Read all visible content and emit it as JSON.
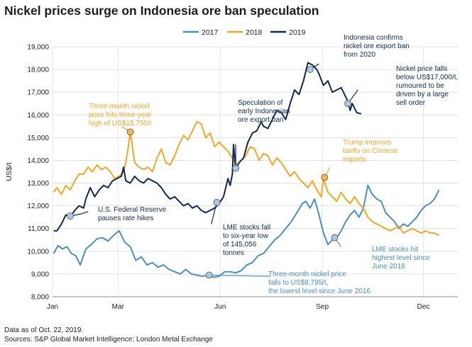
{
  "title": "Nickel prices surge on Indonesia ore ban speculation",
  "footer": {
    "note": "Data as of Oct. 22, 2019.",
    "sources": "Sources: S&P Global Market Intelligence; London Metal Exchange"
  },
  "chart_data": {
    "type": "line",
    "ylabel": "US$/t",
    "xlabel": "",
    "ylim": [
      8000,
      19000
    ],
    "yticks": [
      8000,
      9000,
      10000,
      11000,
      12000,
      13000,
      14000,
      15000,
      16000,
      17000,
      18000,
      19000
    ],
    "ytick_labels": [
      "8,000",
      "9,000",
      "10,000",
      "11,000",
      "12,000",
      "13,000",
      "14,000",
      "15,000",
      "16,000",
      "17,000",
      "18,000",
      "19,000"
    ],
    "xlim": [
      0,
      365
    ],
    "xticks": [
      {
        "day": 0,
        "label": "Jan"
      },
      {
        "day": 59,
        "label": "Mar"
      },
      {
        "day": 151,
        "label": "Jun"
      },
      {
        "day": 243,
        "label": "Sep"
      },
      {
        "day": 334,
        "label": "Dec"
      }
    ],
    "grid": "horizontal",
    "legend_position": "top",
    "series": [
      {
        "name": "2017",
        "color": "#4a8fbf",
        "points": [
          [
            1,
            9900
          ],
          [
            5,
            10250
          ],
          [
            9,
            10100
          ],
          [
            13,
            10200
          ],
          [
            17,
            9900
          ],
          [
            21,
            9800
          ],
          [
            25,
            9400
          ],
          [
            30,
            10100
          ],
          [
            35,
            10300
          ],
          [
            40,
            10550
          ],
          [
            45,
            10600
          ],
          [
            50,
            10450
          ],
          [
            55,
            10700
          ],
          [
            60,
            10900
          ],
          [
            65,
            10400
          ],
          [
            70,
            10200
          ],
          [
            75,
            9600
          ],
          [
            80,
            9750
          ],
          [
            85,
            9400
          ],
          [
            90,
            9500
          ],
          [
            95,
            9300
          ],
          [
            100,
            9400
          ],
          [
            105,
            9200
          ],
          [
            110,
            9100
          ],
          [
            115,
            9000
          ],
          [
            120,
            9200
          ],
          [
            125,
            9000
          ],
          [
            130,
            8950
          ],
          [
            135,
            8900
          ],
          [
            140,
            8950
          ],
          [
            145,
            8850
          ],
          [
            150,
            8900
          ],
          [
            155,
            9100
          ],
          [
            160,
            9100
          ],
          [
            165,
            9050
          ],
          [
            170,
            9150
          ],
          [
            175,
            9400
          ],
          [
            180,
            9500
          ],
          [
            185,
            9800
          ],
          [
            190,
            9900
          ],
          [
            195,
            10200
          ],
          [
            200,
            10500
          ],
          [
            205,
            10700
          ],
          [
            210,
            11000
          ],
          [
            215,
            11300
          ],
          [
            220,
            11700
          ],
          [
            225,
            12100
          ],
          [
            228,
            12200
          ],
          [
            232,
            11900
          ],
          [
            236,
            12300
          ],
          [
            240,
            11600
          ],
          [
            244,
            10800
          ],
          [
            248,
            10300
          ],
          [
            252,
            10500
          ],
          [
            256,
            10600
          ],
          [
            260,
            10900
          ],
          [
            264,
            11300
          ],
          [
            268,
            11600
          ],
          [
            272,
            11800
          ],
          [
            276,
            11500
          ],
          [
            280,
            11900
          ],
          [
            284,
            12900
          ],
          [
            288,
            12500
          ],
          [
            292,
            12300
          ],
          [
            296,
            12200
          ],
          [
            300,
            11700
          ],
          [
            304,
            11500
          ],
          [
            308,
            11300
          ],
          [
            312,
            11000
          ],
          [
            316,
            11200
          ],
          [
            320,
            11100
          ],
          [
            324,
            11300
          ],
          [
            328,
            11500
          ],
          [
            332,
            11800
          ],
          [
            336,
            12000
          ],
          [
            340,
            12100
          ],
          [
            344,
            12300
          ],
          [
            348,
            12700
          ]
        ]
      },
      {
        "name": "2018",
        "color": "#f5a623",
        "points": [
          [
            1,
            12600
          ],
          [
            4,
            12800
          ],
          [
            8,
            12500
          ],
          [
            12,
            12900
          ],
          [
            16,
            12700
          ],
          [
            20,
            13100
          ],
          [
            24,
            13400
          ],
          [
            28,
            13400
          ],
          [
            32,
            13700
          ],
          [
            36,
            13500
          ],
          [
            40,
            13800
          ],
          [
            44,
            13600
          ],
          [
            48,
            13700
          ],
          [
            52,
            13500
          ],
          [
            56,
            13200
          ],
          [
            60,
            13300
          ],
          [
            64,
            13500
          ],
          [
            66,
            13900
          ],
          [
            68,
            14500
          ],
          [
            70,
            15300
          ],
          [
            72,
            14600
          ],
          [
            74,
            13900
          ],
          [
            78,
            13700
          ],
          [
            82,
            13600
          ],
          [
            86,
            13700
          ],
          [
            90,
            13500
          ],
          [
            94,
            14100
          ],
          [
            98,
            14500
          ],
          [
            102,
            13900
          ],
          [
            106,
            13800
          ],
          [
            110,
            14200
          ],
          [
            114,
            14700
          ],
          [
            118,
            15100
          ],
          [
            122,
            14900
          ],
          [
            126,
            15300
          ],
          [
            130,
            15700
          ],
          [
            134,
            15600
          ],
          [
            138,
            15000
          ],
          [
            142,
            15200
          ],
          [
            146,
            14600
          ],
          [
            150,
            14800
          ],
          [
            154,
            14600
          ],
          [
            158,
            14400
          ],
          [
            162,
            14100
          ],
          [
            166,
            13800
          ],
          [
            170,
            14000
          ],
          [
            174,
            14200
          ],
          [
            178,
            14600
          ],
          [
            182,
            14500
          ],
          [
            186,
            14000
          ],
          [
            190,
            14300
          ],
          [
            194,
            14200
          ],
          [
            198,
            13800
          ],
          [
            202,
            14100
          ],
          [
            206,
            13900
          ],
          [
            210,
            13600
          ],
          [
            214,
            13300
          ],
          [
            218,
            13500
          ],
          [
            222,
            13200
          ],
          [
            226,
            13000
          ],
          [
            230,
            12800
          ],
          [
            234,
            13100
          ],
          [
            238,
            12700
          ],
          [
            242,
            12400
          ],
          [
            244,
            13200
          ],
          [
            248,
            12600
          ],
          [
            252,
            12400
          ],
          [
            256,
            12200
          ],
          [
            260,
            12600
          ],
          [
            264,
            12300
          ],
          [
            268,
            12100
          ],
          [
            272,
            12400
          ],
          [
            276,
            12100
          ],
          [
            280,
            11900
          ],
          [
            284,
            11500
          ],
          [
            288,
            11300
          ],
          [
            292,
            11200
          ],
          [
            296,
            11100
          ],
          [
            300,
            11000
          ],
          [
            304,
            10900
          ],
          [
            308,
            11000
          ],
          [
            312,
            11100
          ],
          [
            316,
            10800
          ],
          [
            320,
            10900
          ],
          [
            324,
            11000
          ],
          [
            328,
            10900
          ],
          [
            332,
            10800
          ],
          [
            336,
            10900
          ],
          [
            340,
            10800
          ],
          [
            344,
            10800
          ],
          [
            348,
            10700
          ]
        ]
      },
      {
        "name": "2019",
        "color": "#0f2a57",
        "points": [
          [
            1,
            10900
          ],
          [
            4,
            10900
          ],
          [
            8,
            11200
          ],
          [
            12,
            11600
          ],
          [
            16,
            11500
          ],
          [
            20,
            11800
          ],
          [
            24,
            12000
          ],
          [
            28,
            11900
          ],
          [
            30,
            12300
          ],
          [
            34,
            12800
          ],
          [
            38,
            12400
          ],
          [
            42,
            12700
          ],
          [
            46,
            12900
          ],
          [
            50,
            12800
          ],
          [
            54,
            13100
          ],
          [
            58,
            13200
          ],
          [
            62,
            13300
          ],
          [
            64,
            13700
          ],
          [
            66,
            13100
          ],
          [
            70,
            13000
          ],
          [
            74,
            13300
          ],
          [
            78,
            13100
          ],
          [
            82,
            13000
          ],
          [
            86,
            13200
          ],
          [
            90,
            13100
          ],
          [
            94,
            13000
          ],
          [
            98,
            12800
          ],
          [
            102,
            12500
          ],
          [
            106,
            12300
          ],
          [
            110,
            12400
          ],
          [
            114,
            12200
          ],
          [
            118,
            12000
          ],
          [
            122,
            12100
          ],
          [
            126,
            11900
          ],
          [
            130,
            12000
          ],
          [
            134,
            11800
          ],
          [
            138,
            11700
          ],
          [
            142,
            11800
          ],
          [
            146,
            11900
          ],
          [
            150,
            12100
          ],
          [
            154,
            12400
          ],
          [
            158,
            13200
          ],
          [
            160,
            12900
          ],
          [
            162,
            13400
          ],
          [
            163,
            14700
          ],
          [
            165,
            13600
          ],
          [
            168,
            13900
          ],
          [
            172,
            14100
          ],
          [
            176,
            14800
          ],
          [
            180,
            15200
          ],
          [
            184,
            15300
          ],
          [
            188,
            15700
          ],
          [
            190,
            15500
          ],
          [
            194,
            15400
          ],
          [
            198,
            15800
          ],
          [
            202,
            16200
          ],
          [
            206,
            16100
          ],
          [
            210,
            15800
          ],
          [
            214,
            16500
          ],
          [
            218,
            17100
          ],
          [
            222,
            16900
          ],
          [
            226,
            17500
          ],
          [
            230,
            18300
          ],
          [
            234,
            18200
          ],
          [
            238,
            18000
          ],
          [
            240,
            17800
          ],
          [
            244,
            17300
          ],
          [
            248,
            17500
          ],
          [
            252,
            17000
          ],
          [
            256,
            17100
          ],
          [
            260,
            17200
          ],
          [
            264,
            16800
          ],
          [
            266,
            16600
          ],
          [
            268,
            16200
          ],
          [
            270,
            16500
          ],
          [
            274,
            16100
          ],
          [
            278,
            16050
          ]
        ]
      }
    ],
    "annotations": [
      {
        "series": "2019",
        "x": 16,
        "y": 11550,
        "label": [
          "U.S. Federal Reserve",
          "pauses rate hikes"
        ],
        "color": "#0f2a57"
      },
      {
        "series": "2018",
        "x": 70,
        "y": 15250,
        "label": [
          "Three-month nickel",
          "price hits three-year",
          "high of US$15,750/t"
        ],
        "color": "#f5a623"
      },
      {
        "series": "2017",
        "x": 141,
        "y": 8950,
        "label": [
          "Three-month nickel price",
          "falls to US$8,795/t,",
          "the lowest level since June 2016"
        ],
        "color": "#4a8fbf"
      },
      {
        "series": "2019",
        "x": 148,
        "y": 12150,
        "label": [
          "LME stocks fall",
          "to six-year low",
          "of 145,056",
          "tonnes"
        ],
        "color": "#0f2a57"
      },
      {
        "series": "2019",
        "x": 165,
        "y": 13650,
        "label": [
          "Speculation of",
          "early Indonesian",
          "ore export ban"
        ],
        "color": "#0f2a57"
      },
      {
        "series": "2019",
        "x": 232,
        "y": 18000,
        "label": [
          "Indonesia confirms",
          "nickel ore export ban",
          "from 2020"
        ],
        "color": "#0f2a57"
      },
      {
        "series": "2019",
        "x": 266,
        "y": 16500,
        "label": [
          "Nickel price falls",
          "below US$17,000/t,",
          "rumoured to be",
          "driven by a large",
          "sell order"
        ],
        "color": "#0f2a57"
      },
      {
        "series": "2018",
        "x": 245,
        "y": 13250,
        "label": [
          "Trump imposes",
          "tariffs on Chinese",
          "imports"
        ],
        "color": "#f5a623"
      },
      {
        "series": "2017",
        "x": 254,
        "y": 10600,
        "label": [
          "LME stocks hit",
          "highest level since",
          "June 2016"
        ],
        "color": "#4a8fbf"
      }
    ]
  }
}
